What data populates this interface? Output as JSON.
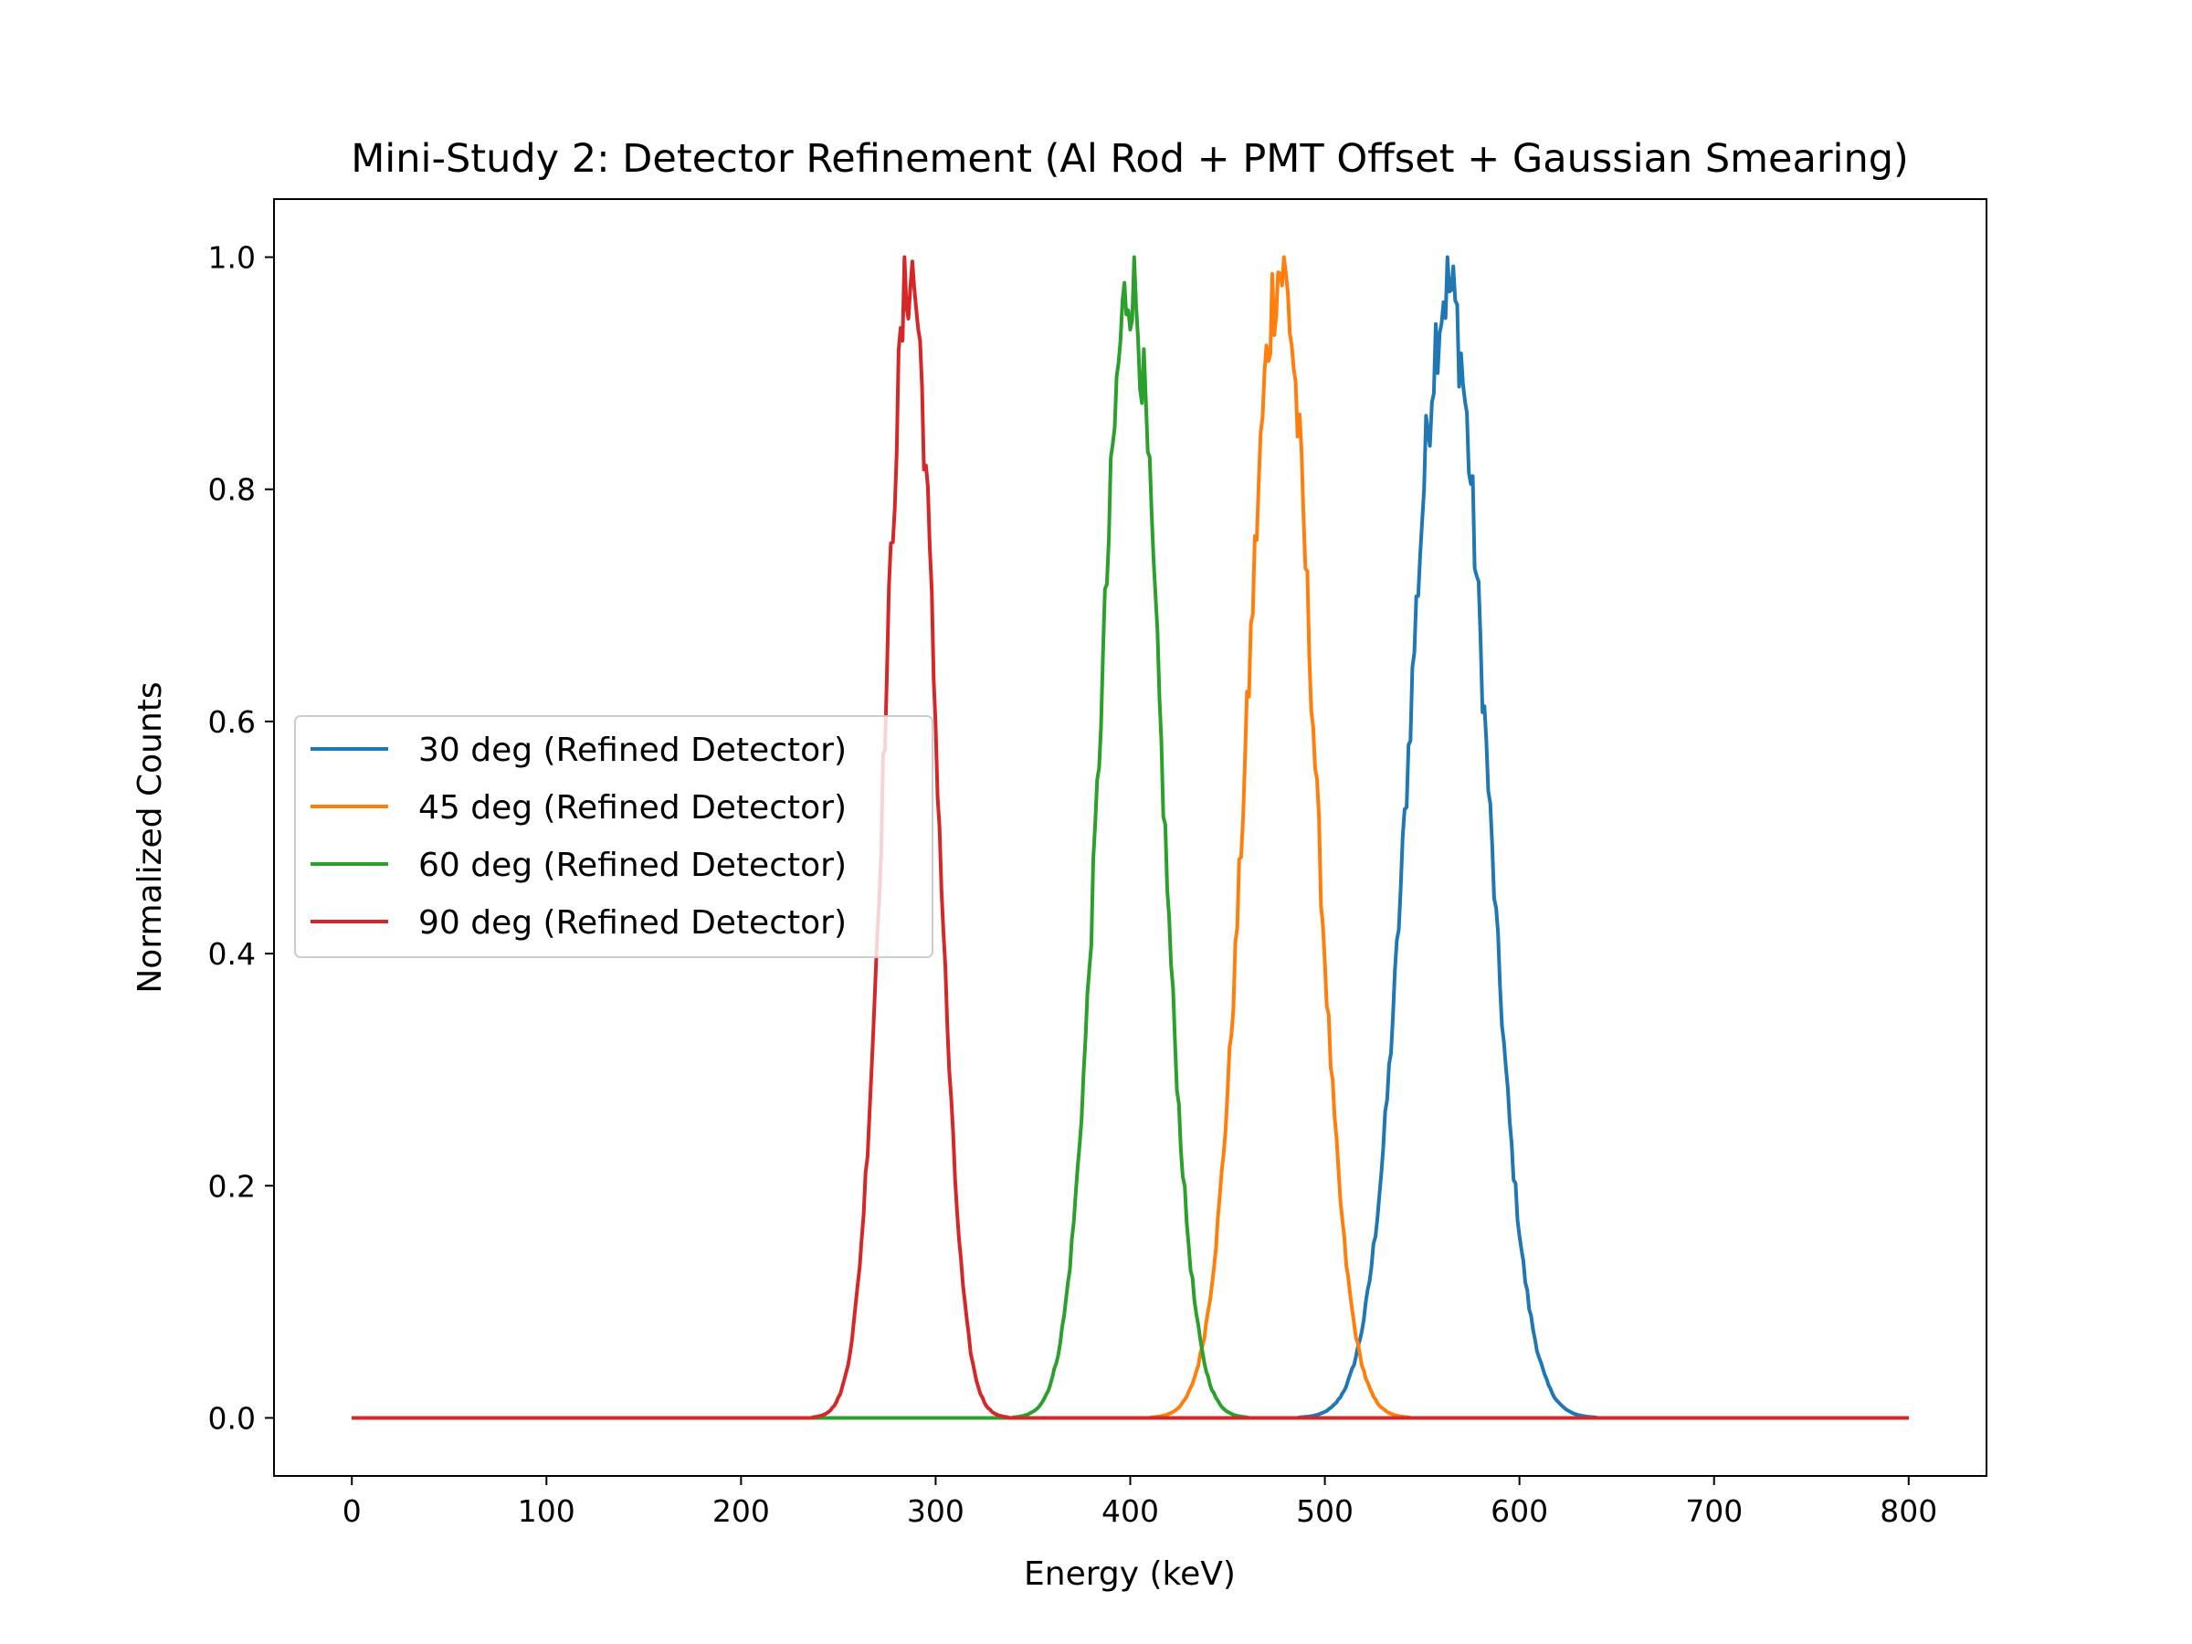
{
  "chart_data": {
    "type": "line",
    "title": "Mini-Study 2: Detector Refinement (Al Rod + PMT Offset + Gaussian Smearing)",
    "xlabel": "Energy (keV)",
    "ylabel": "Normalized Counts",
    "xlim": [
      -40,
      840
    ],
    "ylim": [
      -0.05,
      1.05
    ],
    "x_ticks": [
      "0",
      "100",
      "200",
      "300",
      "400",
      "500",
      "600",
      "700",
      "800"
    ],
    "y_ticks": [
      "0.0",
      "0.2",
      "0.4",
      "0.6",
      "0.8",
      "1.0"
    ],
    "x_tick_values": [
      0,
      100,
      200,
      300,
      400,
      500,
      600,
      700,
      800
    ],
    "y_tick_values": [
      0.0,
      0.2,
      0.4,
      0.6,
      0.8,
      1.0
    ],
    "grid": false,
    "legend_position": "center-left",
    "x_range": [
      0,
      800
    ],
    "series": [
      {
        "name": "30 deg (Refined Detector)",
        "color": "#1f77b4",
        "peak_center_kev": 563,
        "sigma_kev": 19.5,
        "peak_value": 1.0
      },
      {
        "name": "45 deg (Refined Detector)",
        "color": "#ff7f0e",
        "peak_center_kev": 477,
        "sigma_kev": 17.0,
        "peak_value": 1.0
      },
      {
        "name": "60 deg (Refined Detector)",
        "color": "#2ca02c",
        "peak_center_kev": 400,
        "sigma_kev": 15.5,
        "peak_value": 1.0
      },
      {
        "name": "90 deg (Refined Detector)",
        "color": "#d62728",
        "peak_center_kev": 287,
        "sigma_kev": 13.0,
        "peak_value": 1.0
      }
    ]
  }
}
